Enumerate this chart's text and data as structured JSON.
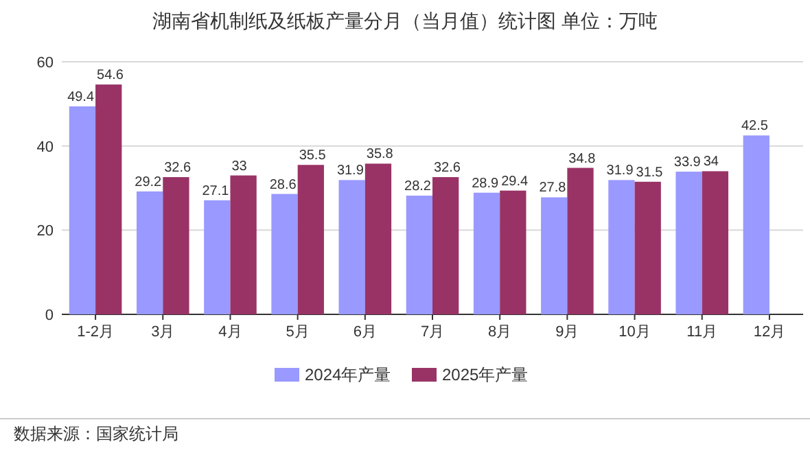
{
  "chart_data": {
    "type": "bar",
    "title": "湖南省机制纸及纸板产量分月（当月值）统计图 单位：万吨",
    "categories": [
      "1-2月",
      "3月",
      "4月",
      "5月",
      "6月",
      "7月",
      "8月",
      "9月",
      "10月",
      "11月",
      "12月"
    ],
    "series": [
      {
        "name": "2024年产量",
        "color": "#9999ff",
        "values": [
          49.4,
          29.2,
          27.1,
          28.6,
          31.9,
          28.2,
          28.9,
          27.8,
          31.9,
          33.9,
          42.5
        ]
      },
      {
        "name": "2025年产量",
        "color": "#993366",
        "values": [
          54.6,
          32.6,
          33,
          35.5,
          35.8,
          32.6,
          29.4,
          34.8,
          31.5,
          34,
          null
        ]
      }
    ],
    "ylim": [
      0,
      60
    ],
    "yticks": [
      0,
      20,
      40,
      60
    ],
    "grid": "y",
    "legend": "bottom",
    "data_labels": true,
    "annotations": [
      "数据来源：国家统计局"
    ]
  }
}
